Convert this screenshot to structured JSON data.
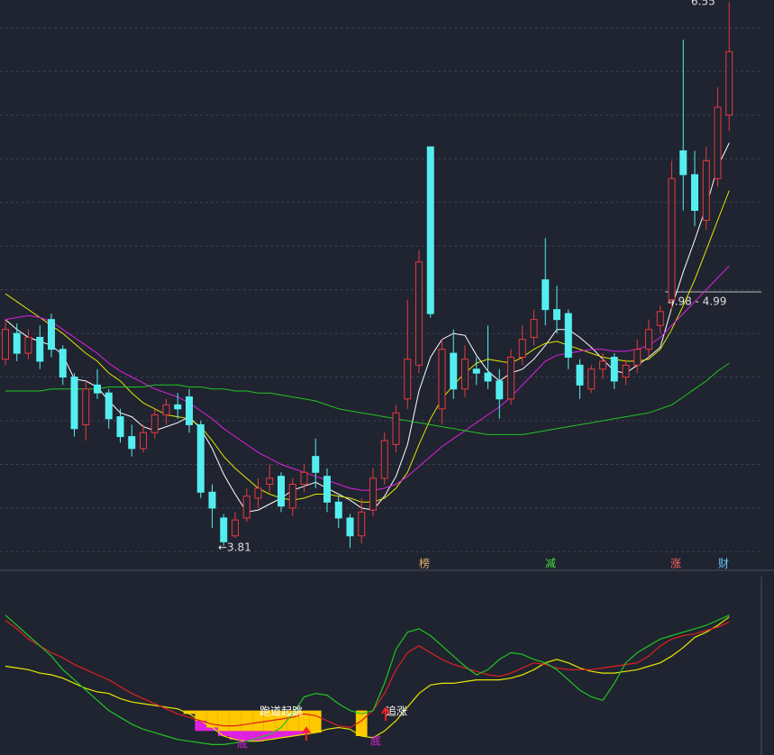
{
  "chart_data": [
    {
      "type": "candlestick",
      "categories": [
        null,
        null,
        null,
        null,
        null,
        null,
        null,
        null,
        null,
        null,
        null,
        null,
        null,
        null,
        null,
        null,
        null,
        null,
        null,
        null,
        null,
        null,
        null,
        null,
        null,
        null,
        null,
        null,
        null,
        null,
        null,
        null,
        null,
        null,
        null,
        null,
        null,
        null,
        null,
        null,
        null,
        null,
        null,
        null,
        null,
        null,
        null,
        null,
        null,
        null,
        null,
        null,
        null,
        null,
        null,
        null,
        null,
        null,
        null,
        null,
        null,
        null,
        null,
        null
      ],
      "open": [
        4.75,
        4.88,
        4.78,
        4.86,
        4.95,
        4.8,
        4.66,
        4.42,
        4.62,
        4.58,
        4.46,
        4.36,
        4.3,
        4.38,
        4.47,
        4.52,
        4.56,
        4.42,
        4.08,
        3.95,
        3.86,
        3.95,
        4.05,
        4.12,
        4.16,
        4.0,
        4.12,
        4.26,
        4.16,
        4.03,
        3.95,
        3.86,
        3.99,
        4.15,
        4.32,
        4.55,
        4.72,
        5.82,
        4.5,
        4.78,
        4.6,
        4.7,
        4.68,
        4.64,
        4.55,
        4.76,
        4.86,
        5.15,
        5.0,
        4.98,
        4.72,
        4.6,
        4.7,
        4.76,
        4.66,
        4.72,
        4.8,
        4.92,
        5.05,
        5.8,
        5.68,
        5.45,
        5.66,
        5.98
      ],
      "high": [
        4.95,
        4.93,
        4.9,
        4.92,
        4.98,
        4.82,
        4.68,
        4.64,
        4.7,
        4.6,
        4.5,
        4.42,
        4.42,
        4.5,
        4.55,
        4.58,
        4.6,
        4.44,
        4.12,
        3.97,
        3.98,
        4.1,
        4.15,
        4.22,
        4.18,
        4.15,
        4.22,
        4.35,
        4.2,
        4.06,
        3.97,
        4.05,
        4.2,
        4.38,
        4.52,
        5.05,
        5.3,
        5.82,
        4.85,
        4.9,
        4.82,
        4.76,
        4.92,
        4.7,
        4.8,
        4.92,
        5.0,
        5.36,
        5.12,
        5.0,
        4.75,
        4.72,
        4.78,
        4.78,
        4.75,
        4.85,
        4.95,
        5.02,
        5.75,
        6.36,
        5.8,
        5.82,
        6.12,
        6.55
      ],
      "low": [
        4.72,
        4.74,
        4.75,
        4.7,
        4.76,
        4.62,
        4.36,
        4.34,
        4.55,
        4.4,
        4.33,
        4.26,
        4.28,
        4.35,
        4.42,
        4.45,
        4.38,
        4.05,
        3.9,
        3.81,
        3.85,
        3.93,
        4.0,
        4.08,
        3.98,
        3.96,
        4.08,
        4.1,
        3.98,
        3.9,
        3.8,
        3.82,
        3.96,
        4.12,
        4.28,
        4.5,
        4.68,
        4.96,
        4.42,
        4.55,
        4.56,
        4.62,
        4.6,
        4.45,
        4.52,
        4.72,
        4.82,
        4.92,
        4.88,
        4.7,
        4.55,
        4.58,
        4.65,
        4.6,
        4.62,
        4.68,
        4.76,
        4.88,
        5.0,
        5.5,
        5.42,
        5.4,
        5.62,
        5.9
      ],
      "close": [
        4.9,
        4.78,
        4.86,
        4.74,
        4.8,
        4.66,
        4.4,
        4.6,
        4.58,
        4.45,
        4.36,
        4.3,
        4.38,
        4.47,
        4.52,
        4.5,
        4.42,
        4.08,
        4.0,
        3.83,
        3.94,
        4.06,
        4.1,
        4.15,
        4.01,
        4.12,
        4.18,
        4.18,
        4.03,
        3.95,
        3.86,
        3.98,
        4.15,
        4.34,
        4.48,
        4.75,
        5.24,
        4.98,
        4.8,
        4.6,
        4.75,
        4.68,
        4.64,
        4.55,
        4.76,
        4.85,
        4.95,
        5.0,
        4.95,
        4.76,
        4.62,
        4.7,
        4.74,
        4.64,
        4.72,
        4.8,
        4.9,
        4.99,
        5.66,
        5.68,
        5.5,
        5.75,
        6.02,
        6.3
      ],
      "up_color": "#e8383d",
      "down_color": "#54eef0",
      "series": [
        {
          "color": "#ffffff",
          "values": [
            4.95,
            4.9,
            4.86,
            4.84,
            4.82,
            4.77,
            4.65,
            4.64,
            4.61,
            4.54,
            4.48,
            4.46,
            4.41,
            4.39,
            4.41,
            4.43,
            4.46,
            4.4,
            4.3,
            4.17,
            4.07,
            3.98,
            3.99,
            4.02,
            4.05,
            4.09,
            4.11,
            4.13,
            4.1,
            4.07,
            4.04,
            4.0,
            3.99,
            4.06,
            4.16,
            4.32,
            4.59,
            4.76,
            4.85,
            4.88,
            4.87,
            4.77,
            4.69,
            4.64,
            4.68,
            4.7,
            4.75,
            4.82,
            4.9,
            4.9,
            4.86,
            4.81,
            4.75,
            4.69,
            4.68,
            4.72,
            4.76,
            4.81,
            5.01,
            5.19,
            5.35,
            5.52,
            5.72,
            5.84
          ]
        },
        {
          "color": "#e6e600",
          "values": [
            5.08,
            5.04,
            5.0,
            4.96,
            4.92,
            4.88,
            4.83,
            4.78,
            4.74,
            4.68,
            4.64,
            4.58,
            4.53,
            4.5,
            4.47,
            4.46,
            4.45,
            4.41,
            4.34,
            4.26,
            4.2,
            4.15,
            4.1,
            4.07,
            4.05,
            4.04,
            4.05,
            4.07,
            4.07,
            4.06,
            4.05,
            4.03,
            4.03,
            4.05,
            4.1,
            4.18,
            4.32,
            4.45,
            4.55,
            4.62,
            4.68,
            4.73,
            4.75,
            4.74,
            4.73,
            4.76,
            4.8,
            4.83,
            4.84,
            4.82,
            4.8,
            4.78,
            4.76,
            4.75,
            4.74,
            4.74,
            4.75,
            4.8,
            4.9,
            5.02,
            5.15,
            5.3,
            5.45,
            5.6
          ]
        },
        {
          "color": "#e020e0",
          "values": [
            4.95,
            4.96,
            4.97,
            4.96,
            4.94,
            4.9,
            4.86,
            4.82,
            4.78,
            4.73,
            4.69,
            4.66,
            4.63,
            4.6,
            4.58,
            4.56,
            4.53,
            4.49,
            4.45,
            4.4,
            4.36,
            4.32,
            4.28,
            4.25,
            4.22,
            4.2,
            4.18,
            4.16,
            4.14,
            4.12,
            4.1,
            4.09,
            4.09,
            4.1,
            4.12,
            4.16,
            4.21,
            4.26,
            4.31,
            4.35,
            4.39,
            4.43,
            4.47,
            4.51,
            4.56,
            4.62,
            4.68,
            4.74,
            4.77,
            4.78,
            4.79,
            4.8,
            4.8,
            4.79,
            4.79,
            4.8,
            4.82,
            4.86,
            4.92,
            4.98,
            5.04,
            5.1,
            5.16,
            5.22
          ]
        },
        {
          "color": "#22c322",
          "values": [
            4.59,
            4.59,
            4.59,
            4.59,
            4.6,
            4.6,
            4.6,
            4.6,
            4.6,
            4.61,
            4.61,
            4.61,
            4.61,
            4.62,
            4.62,
            4.62,
            4.61,
            4.61,
            4.6,
            4.6,
            4.59,
            4.59,
            4.58,
            4.58,
            4.57,
            4.56,
            4.55,
            4.54,
            4.52,
            4.5,
            4.49,
            4.48,
            4.47,
            4.46,
            4.45,
            4.44,
            4.43,
            4.42,
            4.41,
            4.4,
            4.39,
            4.38,
            4.37,
            4.37,
            4.37,
            4.37,
            4.38,
            4.39,
            4.4,
            4.41,
            4.42,
            4.43,
            4.44,
            4.45,
            4.46,
            4.47,
            4.48,
            4.5,
            4.52,
            4.56,
            4.6,
            4.64,
            4.69,
            4.73
          ]
        }
      ],
      "ylim": [
        3.7,
        6.56
      ],
      "yticks": [
        3.78,
        4.0,
        4.22,
        4.44,
        4.66,
        4.88,
        5.1,
        5.32,
        5.54,
        5.76,
        5.98,
        6.2,
        6.42
      ],
      "grid": true,
      "annotations": [
        "6.55",
        "←3.81",
        "4.98 - 4.99",
        "榜",
        "减",
        "涨",
        "财"
      ]
    },
    {
      "type": "line",
      "categories": [
        null,
        null,
        null,
        null,
        null,
        null,
        null,
        null,
        null,
        null,
        null,
        null,
        null,
        null,
        null,
        null,
        null,
        null,
        null,
        null,
        null,
        null,
        null,
        null,
        null,
        null,
        null,
        null,
        null,
        null,
        null,
        null,
        null,
        null,
        null,
        null,
        null,
        null,
        null,
        null,
        null,
        null,
        null,
        null,
        null,
        null,
        null,
        null,
        null,
        null,
        null,
        null,
        null,
        null,
        null,
        null,
        null,
        null,
        null,
        null,
        null,
        null,
        null,
        null
      ],
      "series": [
        {
          "color": "#e6e600",
          "values": [
            50,
            49,
            48,
            46,
            45,
            43,
            40,
            37,
            35,
            34,
            31,
            29,
            28,
            27,
            26,
            25,
            22,
            18,
            14,
            9,
            7,
            6,
            6,
            7,
            8,
            9,
            10,
            11,
            13,
            14,
            13,
            9,
            8,
            12,
            18,
            26,
            34,
            39,
            40,
            40,
            41,
            42,
            42,
            42,
            43,
            45,
            48,
            52,
            54,
            52,
            49,
            47,
            46,
            46,
            47,
            48,
            50,
            52,
            56,
            61,
            67,
            70,
            74,
            79
          ]
        },
        {
          "color": "#e02020",
          "values": [
            77,
            72,
            66,
            62,
            58,
            55,
            51,
            48,
            45,
            42,
            38,
            34,
            31,
            28,
            25,
            22,
            20,
            18,
            16,
            15,
            15,
            16,
            17,
            18,
            19,
            20,
            22,
            21,
            18,
            15,
            14,
            18,
            24,
            34,
            48,
            58,
            62,
            58,
            54,
            51,
            49,
            47,
            45,
            44,
            46,
            49,
            52,
            51,
            49,
            48,
            48,
            48,
            49,
            50,
            51,
            52,
            56,
            62,
            66,
            68,
            69,
            71,
            73,
            76
          ]
        },
        {
          "color": "#22c322",
          "values": [
            80,
            74,
            68,
            62,
            56,
            48,
            42,
            36,
            30,
            24,
            20,
            16,
            13,
            11,
            9,
            7,
            6,
            5,
            4,
            4,
            5,
            6,
            8,
            10,
            14,
            22,
            32,
            34,
            33,
            28,
            24,
            22,
            24,
            40,
            60,
            70,
            72,
            68,
            62,
            56,
            50,
            45,
            48,
            54,
            58,
            57,
            54,
            52,
            48,
            42,
            36,
            32,
            30,
            40,
            52,
            58,
            62,
            66,
            68,
            70,
            72,
            74,
            77,
            80
          ]
        },
        {
          "kind": "bar",
          "color": "#ffc800",
          "values": [
            null,
            null,
            null,
            null,
            null,
            null,
            null,
            null,
            null,
            null,
            null,
            null,
            null,
            null,
            null,
            null,
            24,
            24,
            24,
            24,
            24,
            24,
            24,
            24,
            24,
            24,
            24,
            24,
            null,
            null,
            null,
            24,
            null,
            null,
            null,
            null,
            null,
            null,
            null,
            null,
            null,
            null,
            null,
            null,
            null,
            null,
            null,
            null,
            null,
            null,
            null,
            null,
            null,
            null,
            null,
            null,
            null,
            null,
            null,
            null,
            null,
            null,
            null,
            null
          ]
        },
        {
          "kind": "bar",
          "color": "#e020e0",
          "values": [
            null,
            null,
            null,
            null,
            null,
            null,
            null,
            null,
            null,
            null,
            null,
            null,
            null,
            null,
            null,
            null,
            null,
            12,
            12,
            12,
            12,
            12,
            12,
            12,
            12,
            12,
            12,
            null,
            null,
            null,
            null,
            null,
            null,
            null,
            null,
            null,
            null,
            null,
            null,
            null,
            null,
            null,
            null,
            null,
            null,
            null,
            null,
            null,
            null,
            null,
            null,
            null,
            null,
            null,
            null,
            null,
            null,
            null,
            null,
            null,
            null,
            null,
            null,
            null
          ]
        }
      ],
      "ylim": [
        0,
        100
      ],
      "annotations": [
        "跑道起跳",
        "追涨",
        "底",
        "底"
      ]
    }
  ]
}
